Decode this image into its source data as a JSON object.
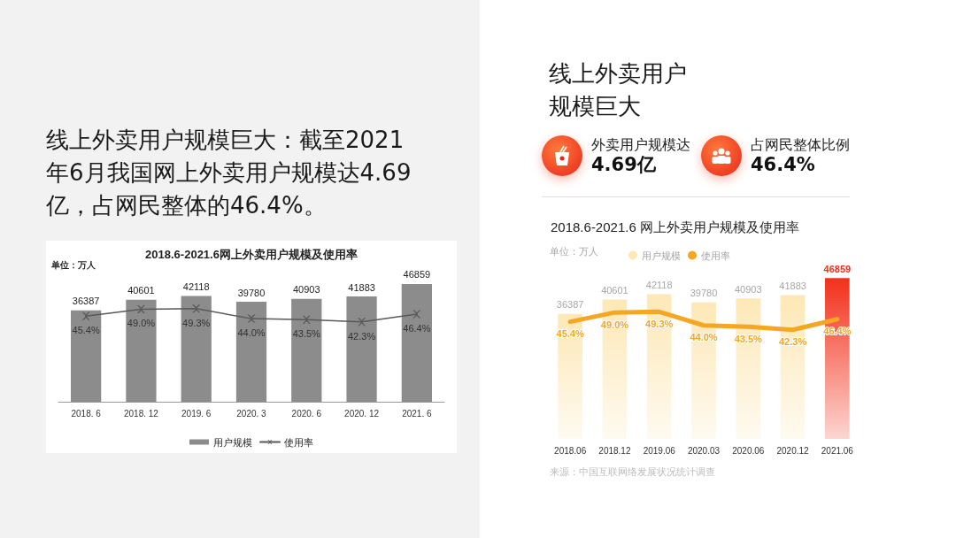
{
  "chart_data": [
    {
      "type": "other",
      "title": "线上外卖用户规模巨大：截至2021年6月我国网上外卖用户规模达4.69亿，占网民整体的46.4%。"
    },
    {
      "type": "bar",
      "title": "2018.6-2021.6网上外卖用户规模及使用率",
      "annotations": [
        "单位：万人"
      ],
      "categories": [
        "2018. 6",
        "2018. 12",
        "2019. 6",
        "2020. 3",
        "2020. 6",
        "2020. 12",
        "2021. 6"
      ],
      "series": [
        {
          "name": "用户规模",
          "type": "bar",
          "color": "#8c8c8c",
          "values": [
            36387,
            40601,
            42118,
            39780,
            40903,
            41883,
            46859
          ],
          "value_labels": [
            "36387",
            "40601",
            "42118",
            "39780",
            "40903",
            "41883",
            "46859"
          ]
        },
        {
          "name": "使用率",
          "type": "line",
          "axis": "y2",
          "color": "#595959",
          "values": [
            45.4,
            49.0,
            49.3,
            44.0,
            43.5,
            42.3,
            46.4
          ],
          "value_labels": [
            "45.4%",
            "49.0%",
            "49.3%",
            "44.0%",
            "43.5%",
            "42.3%",
            "46.4%"
          ]
        }
      ],
      "legend": "bottom",
      "marker": "cross"
    },
    {
      "type": "other",
      "title": "线上外卖用户规模巨大",
      "annotations": [
        "外卖用户规模达",
        "4.69亿",
        "占网民整体比例",
        "46.4%"
      ]
    },
    {
      "type": "bar",
      "title": "2018.6-2021.6 网上外卖用户规模及使用率",
      "annotations": [
        "单位：万人",
        "来源：中国互联网络发展状况统计调查"
      ],
      "categories": [
        "2018.06",
        "2018.12",
        "2019.06",
        "2020.03",
        "2020.06",
        "2020.12",
        "2021.06"
      ],
      "series": [
        {
          "name": "用户规模",
          "type": "bar",
          "color": "#fde8b6",
          "colors": [
            "#fde8b6",
            "#fde8b6",
            "#fde8b6",
            "#fde8b6",
            "#fde8b6",
            "#fde8b6",
            "#f3301b"
          ],
          "values": [
            36387,
            40601,
            42118,
            39780,
            40903,
            41883,
            46859
          ],
          "value_labels": [
            "36387",
            "40601",
            "42118",
            "39780",
            "40903",
            "41883",
            "46859"
          ]
        },
        {
          "name": "使用率",
          "type": "line",
          "axis": "y2",
          "color": "#f5a623",
          "values": [
            45.4,
            49.0,
            49.3,
            44.0,
            43.5,
            42.3,
            46.4
          ],
          "value_labels": [
            "45.4%",
            "49.0%",
            "49.3%",
            "44.0%",
            "43.5%",
            "42.3%",
            "46.4%"
          ]
        }
      ],
      "legend": "top left",
      "marker": "none"
    }
  ]
}
